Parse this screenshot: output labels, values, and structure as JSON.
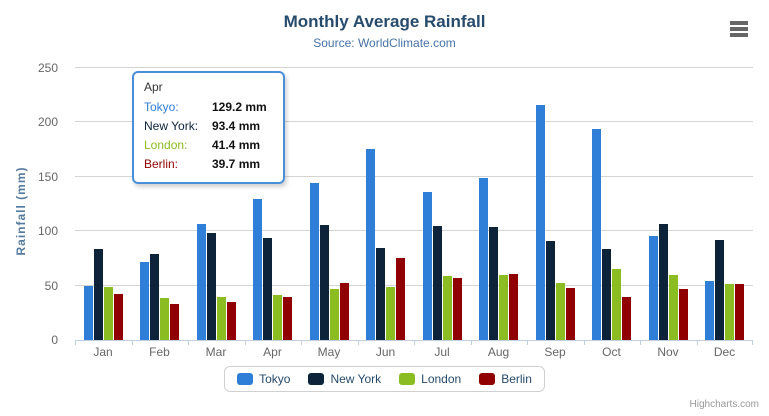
{
  "chart": {
    "title": "Monthly Average Rainfall",
    "subtitle": "Source: WorldClimate.com",
    "yaxis_title": "Rainfall (mm)",
    "credit": "Highcharts.com"
  },
  "chart_data": {
    "type": "bar",
    "title": "Monthly Average Rainfall",
    "subtitle": "Source: WorldClimate.com",
    "xlabel": "",
    "ylabel": "Rainfall (mm)",
    "categories": [
      "Jan",
      "Feb",
      "Mar",
      "Apr",
      "May",
      "Jun",
      "Jul",
      "Aug",
      "Sep",
      "Oct",
      "Nov",
      "Dec"
    ],
    "series": [
      {
        "name": "Tokyo",
        "color": "#2f7ed8",
        "values": [
          49.9,
          71.5,
          106.4,
          129.2,
          144.0,
          176.0,
          135.6,
          148.5,
          216.4,
          194.1,
          95.6,
          54.4
        ]
      },
      {
        "name": "New York",
        "color": "#0d233a",
        "values": [
          83.6,
          78.8,
          98.5,
          93.4,
          106.0,
          84.5,
          105.0,
          104.3,
          91.2,
          83.5,
          106.6,
          92.3
        ]
      },
      {
        "name": "London",
        "color": "#8bbc21",
        "values": [
          48.9,
          38.8,
          39.3,
          41.4,
          47.0,
          48.3,
          59.0,
          59.6,
          52.4,
          65.2,
          59.3,
          51.2
        ]
      },
      {
        "name": "Berlin",
        "color": "#910000",
        "values": [
          42.4,
          33.2,
          34.5,
          39.7,
          52.6,
          75.5,
          57.4,
          60.4,
          47.6,
          39.1,
          46.8,
          51.1
        ]
      }
    ],
    "ylim": [
      0,
      250
    ],
    "yticks": [
      0,
      50,
      100,
      150,
      200,
      250
    ],
    "grid": true,
    "legend_position": "bottom"
  },
  "tooltip": {
    "header": "Apr",
    "border_color": "#4a90d9",
    "rows": [
      {
        "label": "Tokyo:",
        "color": "#2f7ed8",
        "value": "129.2 mm"
      },
      {
        "label": "New York:",
        "color": "#0d233a",
        "value": "93.4 mm"
      },
      {
        "label": "London:",
        "color": "#8bbc21",
        "value": "41.4 mm"
      },
      {
        "label": "Berlin:",
        "color": "#910000",
        "value": "39.7 mm"
      }
    ]
  },
  "legend": {
    "items": [
      {
        "label": "Tokyo",
        "color": "#2f7ed8"
      },
      {
        "label": "New York",
        "color": "#0d233a"
      },
      {
        "label": "London",
        "color": "#8bbc21"
      },
      {
        "label": "Berlin",
        "color": "#910000"
      }
    ]
  },
  "colors": {
    "title": "#274b6d",
    "subtitle": "#4572a7",
    "axis_labels": "#666666",
    "gridline": "#d4d4d4",
    "axis_line": "#c0d0e0"
  }
}
